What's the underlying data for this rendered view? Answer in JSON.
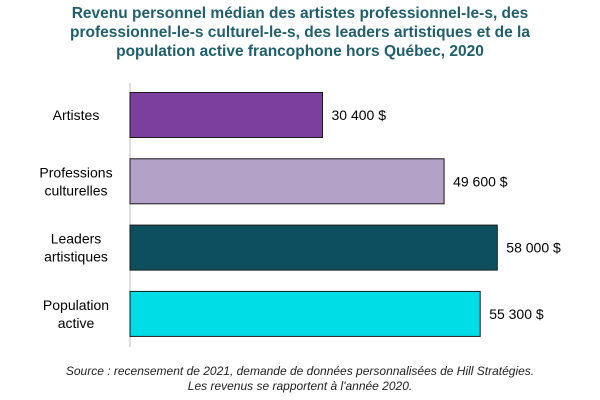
{
  "chart_data": {
    "type": "bar",
    "orientation": "horizontal",
    "title": "Revenu personnel médian des artistes professionnel-le-s, des\nprofessionnel-le-s culturel-le-s, des leaders artistiques et de la\npopulation active francophone hors Québec, 2020",
    "categories": [
      [
        "Artistes"
      ],
      [
        "Professions",
        "culturelles"
      ],
      [
        "Leaders",
        "artistiques"
      ],
      [
        "Population",
        "active"
      ]
    ],
    "values": [
      30400,
      49600,
      58000,
      55300
    ],
    "value_labels": [
      "30 400 $",
      "49 600 $",
      "58 000 $",
      "55 300 $"
    ],
    "colors": [
      "#7b3f9e",
      "#b3a1c8",
      "#0d4f5f",
      "#00dde6"
    ],
    "xlim": [
      0,
      60000
    ],
    "grid": false,
    "legend": "none"
  },
  "source": {
    "line1": "Source : recensement de 2021, demande de données personnalisées de Hill Stratégies.",
    "line2": "Les revenus se rapportent à l'année 2020."
  }
}
